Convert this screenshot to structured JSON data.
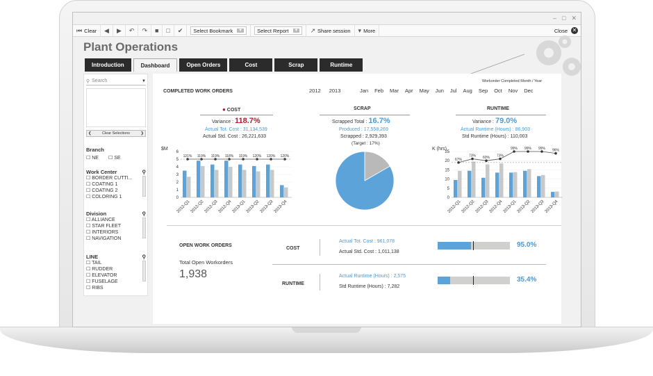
{
  "toolbar": {
    "clear": "Clear",
    "bookmark": "Select Bookmark",
    "report": "Select Report",
    "share": "Share session",
    "more": "More",
    "close": "Close"
  },
  "app_title": "Plant Operations",
  "tabs": [
    "Introduction",
    "Dashboard",
    "Open Orders",
    "Cost",
    "Scrap",
    "Runtime"
  ],
  "active_tab": "Dashboard",
  "filters": {
    "search_placeholder": "Search",
    "clear_selections": "Clear Selections",
    "branch": {
      "label": "Branch",
      "items": [
        "NE",
        "SE"
      ]
    },
    "work_center": {
      "label": "Work Center",
      "items": [
        "BORDER CUTTI...",
        "COATING 1",
        "COATING 2",
        "COLORING 1"
      ]
    },
    "division": {
      "label": "Division",
      "items": [
        "ALLIANCE",
        "STAR FLEET",
        "INTERIORS",
        "NAVIGATION"
      ]
    },
    "line": {
      "label": "LINE",
      "items": [
        "TAIL",
        "RUDDER",
        "ELEVATOR",
        "FUSELAGE",
        "RIBS"
      ]
    }
  },
  "completed": {
    "title": "COMPLETED WORK ORDERS",
    "years": [
      "2012",
      "2013"
    ],
    "months": [
      "Jan",
      "Feb",
      "Mar",
      "Apr",
      "May",
      "Jun",
      "Jul",
      "Aug",
      "Sep",
      "Oct",
      "Nov",
      "Dec"
    ],
    "month_caption": "Workorder Completed Month / Year"
  },
  "cost": {
    "title": "COST",
    "variance_label": "Variance :",
    "variance": "118.7%",
    "actual_label": "Actual Tot. Cost : 31,134,539",
    "std_label": "Actual Std. Cost : 26,221,633",
    "unit": "$M"
  },
  "scrap": {
    "title": "SCRAP",
    "total_label": "Scrapped Total :",
    "total": "16.7%",
    "produced": "Produced : 17,558,269",
    "scrapped": "Scrapped : 2,929,393",
    "target": "(Target : 17%)"
  },
  "runtime": {
    "title": "RUNTIME",
    "variance_label": "Variance :",
    "variance": "79.0%",
    "actual": "Actual Runtime (Hours) : 86,903",
    "std": "Std Runtime (Hours) : 110,003",
    "unit": "K (hrs)"
  },
  "open_orders": {
    "title": "OPEN WORK ORDERS",
    "total_label": "Total Open Workorders",
    "total": "1,938",
    "cost_label": "COST",
    "cost_actual": "Actual Tot. Cost : 961,078",
    "cost_std": "Actual Std. Cost : 1,011,138",
    "cost_pct": "95.0%",
    "cost_fraction": 0.95,
    "runtime_label": "RUNTIME",
    "runtime_actual": "Actual Runtime (Hours) : 2,575",
    "runtime_std": "Std Runtime (Hours) : 7,282",
    "runtime_pct": "35.4%",
    "runtime_fraction": 0.354
  },
  "chart_data": [
    {
      "type": "bar",
      "title": "COST",
      "ylabel": "$M",
      "categories": [
        "2012-Q1",
        "2012-Q2",
        "2012-Q3",
        "2012-Q4",
        "2013-Q1",
        "2013-Q2",
        "2013-Q3",
        "2013-Q4"
      ],
      "series": [
        {
          "values": [
            3.5,
            4.8,
            4.3,
            4.8,
            4.3,
            4.1,
            4.3,
            1.6
          ]
        },
        {
          "values": [
            2.7,
            4.1,
            3.6,
            4.0,
            3.6,
            3.4,
            3.6,
            1.3
          ]
        }
      ],
      "line_labels": [
        "121%",
        "119%",
        "119%",
        "118%",
        "119%",
        "120%",
        "120%",
        "120%"
      ],
      "line_values": [
        5.0,
        5.0,
        5.0,
        5.0,
        5.0,
        5.0,
        5.0,
        5.0
      ],
      "yticks": [
        0,
        1,
        2,
        3,
        4,
        5,
        6
      ],
      "ylim": [
        0,
        6
      ]
    },
    {
      "type": "pie",
      "title": "SCRAP",
      "values": [
        16.7,
        83.3
      ]
    },
    {
      "type": "bar",
      "title": "RUNTIME",
      "ylabel": "K (hrs)",
      "categories": [
        "2012-Q1",
        "2012-Q2",
        "2012-Q3",
        "2012-Q4",
        "2013-Q1",
        "2013-Q2",
        "2013-Q3",
        "2013-Q4"
      ],
      "series": [
        {
          "values": [
            9.5,
            14.5,
            10.7,
            13.5,
            13.5,
            14.5,
            11.6,
            3.0
          ]
        },
        {
          "values": [
            14.5,
            19.5,
            18.0,
            18.5,
            13.8,
            15.4,
            12.2,
            3.2
          ]
        }
      ],
      "line_labels": [
        "67%",
        "73%",
        "60%",
        "73%",
        "99%",
        "99%",
        "99%",
        "96%"
      ],
      "line_values": [
        19,
        21,
        20,
        21,
        25,
        25,
        25,
        24
      ],
      "yticks": [
        0,
        5,
        10,
        15,
        20,
        25
      ],
      "ylim": [
        0,
        25
      ]
    }
  ]
}
